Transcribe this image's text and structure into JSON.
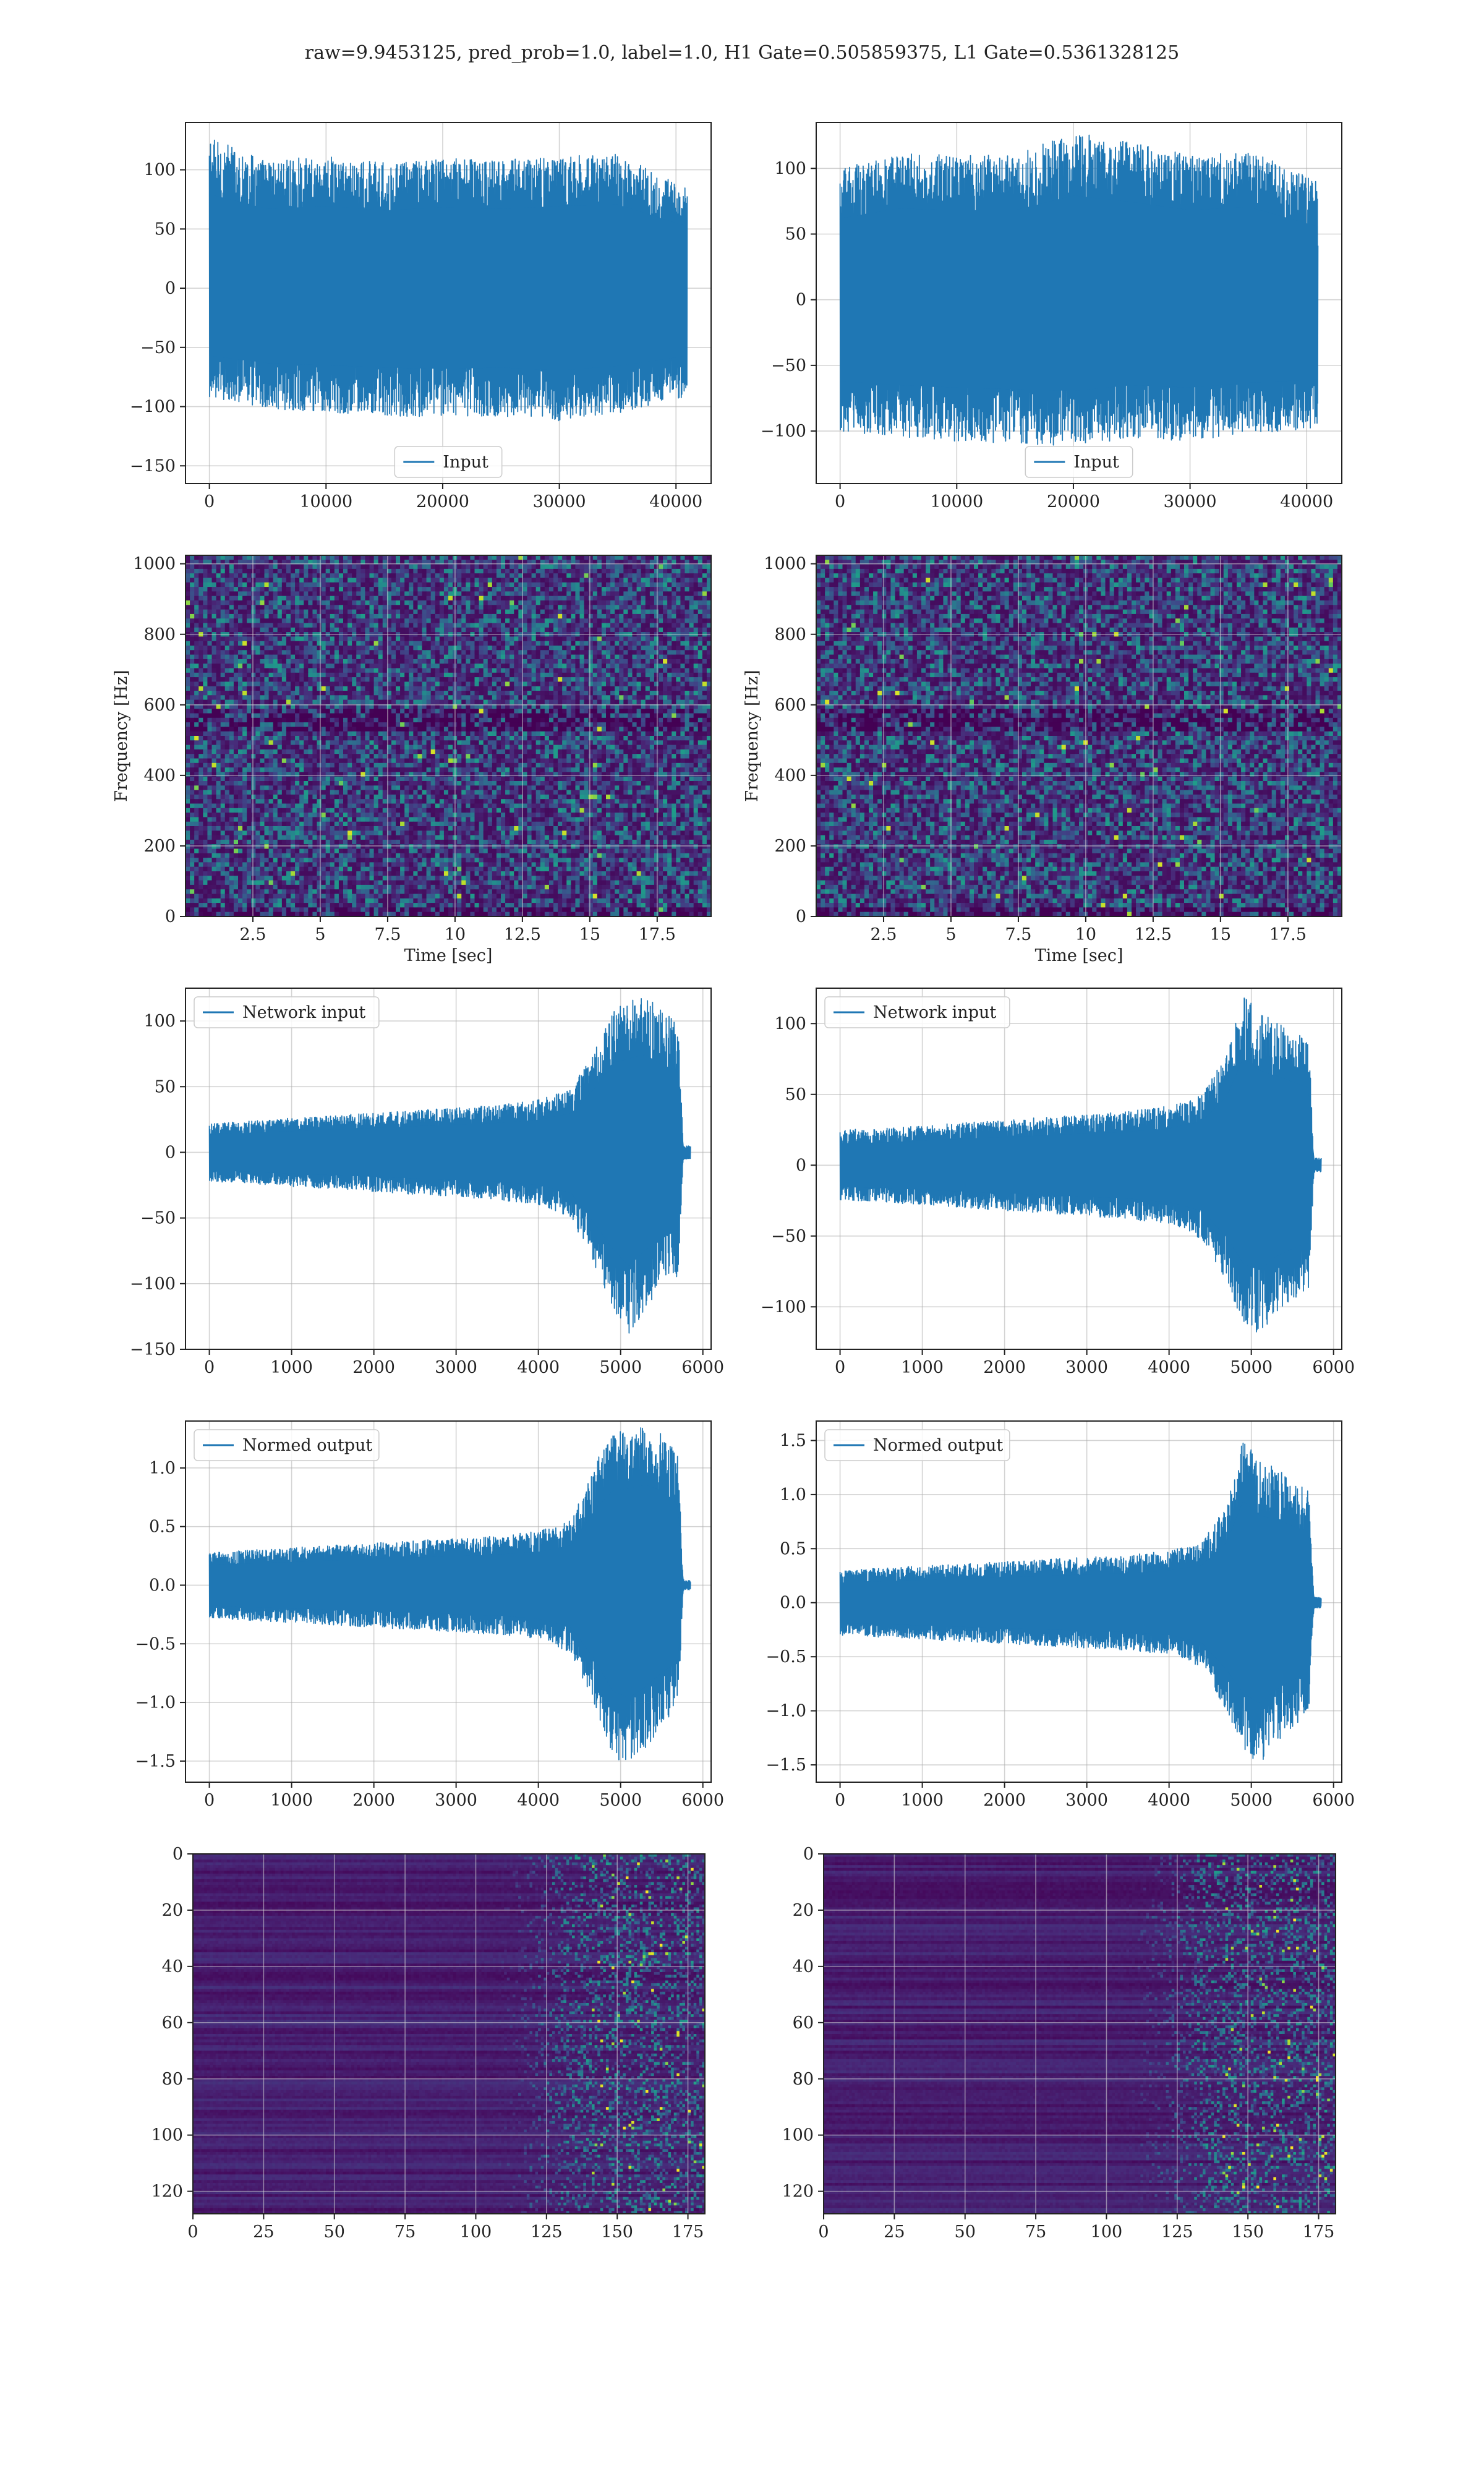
{
  "figure": {
    "title": "raw=9.9453125, pred_prob=1.0, label=1.0, H1 Gate=0.505859375, L1 Gate=0.5361328125",
    "colors": {
      "line": "#1f77b4",
      "grid": "#b0b0b0",
      "viridis_low": "#440154",
      "viridis_high": "#fde725"
    }
  },
  "chart_data": [
    {
      "id": "input-h1",
      "type": "line",
      "series": [
        {
          "name": "Input",
          "envelope": {
            "x": [
              0,
              5000,
              10000,
              15000,
              20000,
              25000,
              30000,
              35000,
              40960
            ],
            "max": [
              128,
              108,
              112,
              106,
              110,
              108,
              112,
              114,
              84
            ],
            "min": [
              -92,
              -102,
              -105,
              -108,
              -110,
              -108,
              -112,
              -106,
              -92
            ]
          }
        }
      ],
      "xlim": [
        -2048,
        43008
      ],
      "ylim": [
        -165,
        140
      ],
      "xticks": [
        0,
        10000,
        20000,
        30000,
        40000
      ],
      "yticks": [
        -150,
        -100,
        -50,
        0,
        50,
        100
      ],
      "legend": "lower center",
      "grid": true,
      "xlabel": "",
      "ylabel": ""
    },
    {
      "id": "input-l1",
      "type": "line",
      "series": [
        {
          "name": "Input",
          "envelope": {
            "x": [
              0,
              5000,
              10000,
              15000,
              20000,
              25000,
              30000,
              35000,
              40960
            ],
            "max": [
              100,
              112,
              110,
              110,
              128,
              120,
              110,
              114,
              90
            ],
            "min": [
              -100,
              -105,
              -108,
              -110,
              -112,
              -105,
              -108,
              -102,
              -98
            ]
          }
        }
      ],
      "xlim": [
        -2048,
        43008
      ],
      "ylim": [
        -140,
        135
      ],
      "xticks": [
        0,
        10000,
        20000,
        30000,
        40000
      ],
      "yticks": [
        -100,
        -50,
        0,
        50,
        100
      ],
      "legend": "lower center",
      "grid": true,
      "xlabel": "",
      "ylabel": ""
    },
    {
      "id": "spectrogram-h1",
      "type": "heatmap",
      "colormap": "viridis",
      "xlim": [
        0.0,
        19.5
      ],
      "ylim": [
        0,
        1024
      ],
      "xticks": [
        2.5,
        5.0,
        7.5,
        10.0,
        12.5,
        15.0,
        17.5
      ],
      "yticks": [
        0,
        200,
        400,
        600,
        800,
        1000
      ],
      "xlabel": "Time [sec]",
      "ylabel": "Frequency [Hz]",
      "grid": true
    },
    {
      "id": "spectrogram-l1",
      "type": "heatmap",
      "colormap": "viridis",
      "xlim": [
        0.0,
        19.5
      ],
      "ylim": [
        0,
        1024
      ],
      "xticks": [
        2.5,
        5.0,
        7.5,
        10.0,
        12.5,
        15.0,
        17.5
      ],
      "yticks": [
        0,
        200,
        400,
        600,
        800,
        1000
      ],
      "xlabel": "Time [sec]",
      "ylabel": "Frequency [Hz]",
      "grid": true
    },
    {
      "id": "network-input-h1",
      "type": "line",
      "series": [
        {
          "name": "Network input",
          "envelope": {
            "x": [
              0,
              500,
              1000,
              1500,
              2000,
              2500,
              3000,
              3500,
              4000,
              4400,
              4700,
              4900,
              5100,
              5300,
              5500,
              5700,
              5760,
              5780,
              5850
            ],
            "max": [
              22,
              24,
              26,
              28,
              30,
              32,
              34,
              36,
              40,
              48,
              80,
              110,
              115,
              120,
              108,
              100,
              6,
              5,
              5
            ],
            "min": [
              -22,
              -24,
              -26,
              -28,
              -30,
              -32,
              -34,
              -36,
              -40,
              -50,
              -90,
              -118,
              -140,
              -120,
              -106,
              -95,
              -6,
              -5,
              -5
            ]
          }
        }
      ],
      "xlim": [
        -290,
        6100
      ],
      "ylim": [
        -150,
        125
      ],
      "xticks": [
        0,
        1000,
        2000,
        3000,
        4000,
        5000,
        6000
      ],
      "yticks": [
        -150,
        -100,
        -50,
        0,
        50,
        100
      ],
      "legend": "upper left",
      "grid": true,
      "xlabel": "",
      "ylabel": ""
    },
    {
      "id": "network-input-l1",
      "type": "line",
      "series": [
        {
          "name": "Network input",
          "envelope": {
            "x": [
              0,
              500,
              1000,
              1500,
              2000,
              2500,
              3000,
              3500,
              4000,
              4400,
              4700,
              4900,
              5100,
              5300,
              5500,
              5700,
              5760,
              5780,
              5850
            ],
            "max": [
              25,
              26,
              28,
              30,
              32,
              34,
              36,
              38,
              42,
              50,
              78,
              122,
              108,
              102,
              95,
              88,
              6,
              5,
              5
            ],
            "min": [
              -25,
              -26,
              -28,
              -30,
              -32,
              -34,
              -36,
              -38,
              -42,
              -52,
              -82,
              -112,
              -120,
              -104,
              -95,
              -88,
              -6,
              -5,
              -5
            ]
          }
        }
      ],
      "xlim": [
        -290,
        6100
      ],
      "ylim": [
        -130,
        125
      ],
      "xticks": [
        0,
        1000,
        2000,
        3000,
        4000,
        5000,
        6000
      ],
      "yticks": [
        -100,
        -50,
        0,
        50,
        100
      ],
      "legend": "upper left",
      "grid": true,
      "xlabel": "",
      "ylabel": ""
    },
    {
      "id": "normed-output-h1",
      "type": "line",
      "series": [
        {
          "name": "Normed output",
          "envelope": {
            "x": [
              0,
              500,
              1000,
              1500,
              2000,
              2500,
              3000,
              3500,
              4000,
              4400,
              4700,
              4900,
              5100,
              5300,
              5500,
              5700,
              5760,
              5780,
              5850
            ],
            "max": [
              0.28,
              0.3,
              0.32,
              0.34,
              0.36,
              0.38,
              0.4,
              0.42,
              0.46,
              0.55,
              1.05,
              1.3,
              1.33,
              1.38,
              1.3,
              1.1,
              0.05,
              0.04,
              0.04
            ],
            "min": [
              -0.28,
              -0.3,
              -0.32,
              -0.34,
              -0.36,
              -0.38,
              -0.4,
              -0.42,
              -0.46,
              -0.58,
              -1.05,
              -1.45,
              -1.55,
              -1.4,
              -1.2,
              -1.05,
              -0.05,
              -0.04,
              -0.04
            ]
          }
        }
      ],
      "xlim": [
        -290,
        6100
      ],
      "ylim": [
        -1.68,
        1.4
      ],
      "xticks": [
        0,
        1000,
        2000,
        3000,
        4000,
        5000,
        6000
      ],
      "yticks": [
        -1.5,
        -1.0,
        -0.5,
        0.0,
        0.5,
        1.0
      ],
      "legend": "upper left",
      "grid": true,
      "xlabel": "",
      "ylabel": ""
    },
    {
      "id": "normed-output-l1",
      "type": "line",
      "series": [
        {
          "name": "Normed output",
          "envelope": {
            "x": [
              0,
              500,
              1000,
              1500,
              2000,
              2500,
              3000,
              3500,
              4000,
              4400,
              4700,
              4900,
              5100,
              5300,
              5500,
              5700,
              5760,
              5780,
              5850
            ],
            "max": [
              0.3,
              0.32,
              0.34,
              0.36,
              0.38,
              0.4,
              0.42,
              0.44,
              0.48,
              0.56,
              0.9,
              1.52,
              1.3,
              1.25,
              1.15,
              1.05,
              0.06,
              0.05,
              0.05
            ],
            "min": [
              -0.3,
              -0.32,
              -0.34,
              -0.36,
              -0.38,
              -0.4,
              -0.42,
              -0.44,
              -0.48,
              -0.6,
              -1.0,
              -1.35,
              -1.5,
              -1.3,
              -1.15,
              -1.05,
              -0.06,
              -0.05,
              -0.05
            ]
          }
        }
      ],
      "xlim": [
        -290,
        6100
      ],
      "ylim": [
        -1.66,
        1.68
      ],
      "xticks": [
        0,
        1000,
        2000,
        3000,
        4000,
        5000,
        6000
      ],
      "yticks": [
        -1.5,
        -1.0,
        -0.5,
        0.0,
        0.5,
        1.0,
        1.5
      ],
      "legend": "upper left",
      "grid": true,
      "xlabel": "",
      "ylabel": ""
    },
    {
      "id": "activation-h1",
      "type": "heatmap",
      "colormap": "viridis",
      "xlim": [
        0,
        181
      ],
      "ylim": [
        128,
        0
      ],
      "xticks": [
        0,
        25,
        50,
        75,
        100,
        125,
        150,
        175
      ],
      "yticks": [
        0,
        20,
        40,
        60,
        80,
        100,
        120
      ],
      "activity_onset_x": 125,
      "grid": true,
      "xlabel": "",
      "ylabel": ""
    },
    {
      "id": "activation-l1",
      "type": "heatmap",
      "colormap": "viridis",
      "xlim": [
        0,
        181
      ],
      "ylim": [
        128,
        0
      ],
      "xticks": [
        0,
        25,
        50,
        75,
        100,
        125,
        150,
        175
      ],
      "yticks": [
        0,
        20,
        40,
        60,
        80,
        100,
        120
      ],
      "activity_onset_x": 125,
      "grid": true,
      "xlabel": "",
      "ylabel": ""
    }
  ]
}
